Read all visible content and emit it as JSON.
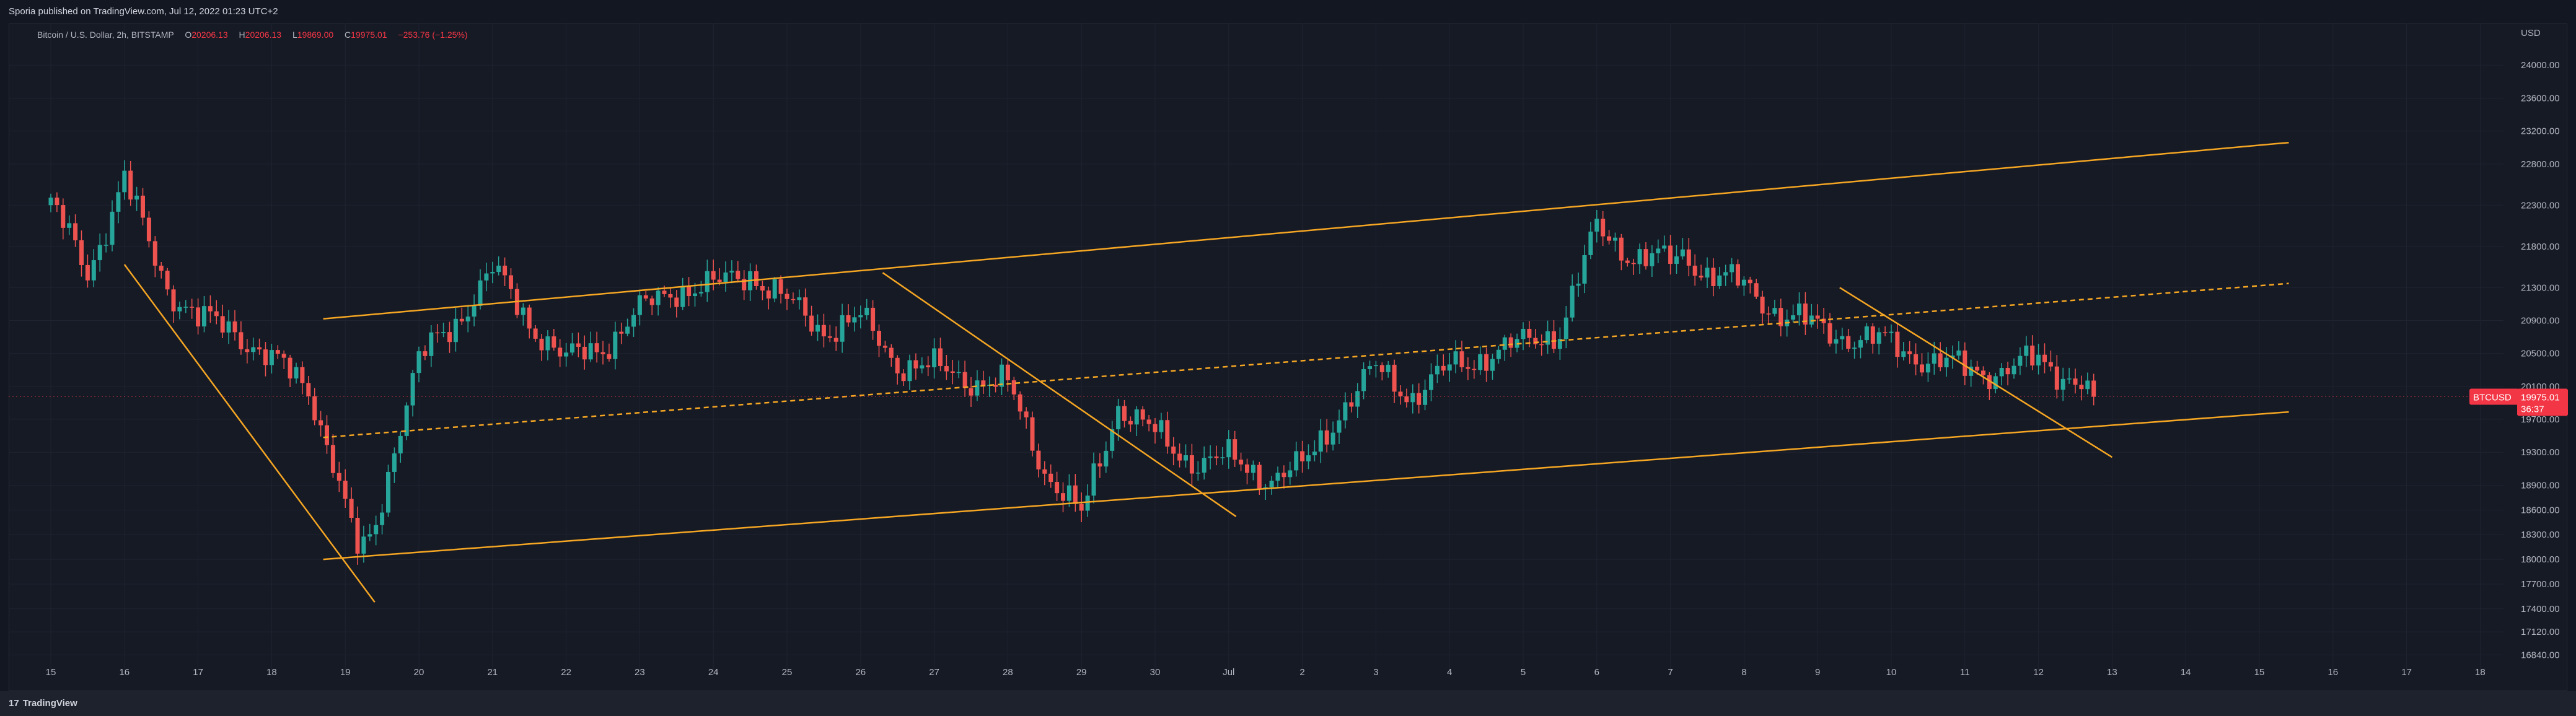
{
  "header": {
    "published_text": "Sporia published on TradingView.com, Jul 12, 2022 01:23 UTC+2"
  },
  "legend": {
    "symbol": "Bitcoin / U.S. Dollar, 2h, BITSTAMP",
    "open_label": "O",
    "open": "20206.13",
    "high_label": "H",
    "high": "20206.13",
    "low_label": "L",
    "low": "19869.00",
    "close_label": "C",
    "close": "19975.01",
    "change": "−253.76 (−1.25%)"
  },
  "footer": {
    "logo_mark": "17",
    "brand": "TradingView"
  },
  "colors": {
    "background": "#131722",
    "up": "#26a69a",
    "down": "#ef5350",
    "trendline": "#f5a623",
    "grid": "#1f2330",
    "price_tag": "#f23645"
  },
  "chart_data": {
    "type": "candlestick",
    "symbol": "BTCUSD",
    "currency": "USD",
    "timeframe": "2h",
    "x_axis_ticks": [
      "15",
      "16",
      "17",
      "18",
      "19",
      "20",
      "21",
      "22",
      "23",
      "24",
      "25",
      "26",
      "27",
      "28",
      "29",
      "30",
      "Jul",
      "2",
      "3",
      "4",
      "5",
      "6",
      "7",
      "8",
      "9",
      "10",
      "11",
      "12",
      "13",
      "14",
      "15",
      "16",
      "17",
      "18"
    ],
    "y_axis_ticks": [
      "24000.00",
      "23600.00",
      "23200.00",
      "22800.00",
      "22300.00",
      "21800.00",
      "21300.00",
      "20900.00",
      "20500.00",
      "20100.00",
      "19700.00",
      "19300.00",
      "18900.00",
      "18600.00",
      "18300.00",
      "18000.00",
      "17700.00",
      "17400.00",
      "17120.00",
      "16840.00"
    ],
    "ylim": [
      16700,
      24400
    ],
    "last_price_label": {
      "symbol": "BTCUSD",
      "price": "19975.01",
      "countdown": "36:37"
    },
    "price_path_x_day": [
      0,
      0.5,
      1,
      1.3,
      1.6,
      2,
      2.5,
      3,
      3.5,
      3.8,
      4,
      4.2,
      4.4,
      4.7,
      5,
      5.5,
      6,
      6.5,
      7,
      7.5,
      8,
      8.5,
      9,
      9.5,
      10,
      10.5,
      11,
      11.5,
      12,
      12.5,
      13,
      13.5,
      14,
      14.5,
      15,
      15.3,
      15.6,
      16,
      16.3,
      16.6,
      17,
      17.5,
      18,
      18.5,
      19,
      19.5,
      20,
      20.5,
      21,
      21.5,
      22,
      22.2,
      22.5,
      23,
      23.5,
      24,
      24.5,
      25,
      25.3,
      25.6,
      26,
      26.5,
      27,
      27.5,
      27.8
    ],
    "price_path_close": [
      22300,
      21500,
      22600,
      21900,
      21300,
      20900,
      20800,
      20400,
      20100,
      19300,
      18600,
      18000,
      18400,
      19500,
      20400,
      20900,
      21500,
      20900,
      20400,
      20600,
      21000,
      21300,
      21300,
      21500,
      21100,
      20800,
      20900,
      20400,
      20300,
      20200,
      20100,
      19100,
      18500,
      19900,
      19500,
      19300,
      19200,
      19200,
      19100,
      19000,
      19100,
      19800,
      20300,
      20000,
      20300,
      20500,
      20600,
      20800,
      22000,
      21700,
      21600,
      21700,
      21500,
      21300,
      21000,
      20800,
      20700,
      20600,
      20500,
      20400,
      20300,
      20300,
      20400,
      20200,
      19975
    ],
    "trendlines": [
      {
        "style": "solid",
        "points": [
          [
            1.0,
            21580
          ],
          [
            4.4,
            17480
          ]
        ]
      },
      {
        "style": "solid",
        "points": [
          [
            3.7,
            20920
          ],
          [
            30.4,
            23060
          ]
        ]
      },
      {
        "style": "solid",
        "points": [
          [
            3.7,
            18000
          ],
          [
            30.4,
            19790
          ]
        ]
      },
      {
        "style": "dashed",
        "points": [
          [
            3.7,
            19480
          ],
          [
            30.4,
            21350
          ]
        ]
      },
      {
        "style": "solid",
        "points": [
          [
            11.3,
            21480
          ],
          [
            16.1,
            18520
          ]
        ]
      },
      {
        "style": "solid",
        "points": [
          [
            24.3,
            21300
          ],
          [
            28.0,
            19240
          ]
        ]
      }
    ]
  }
}
